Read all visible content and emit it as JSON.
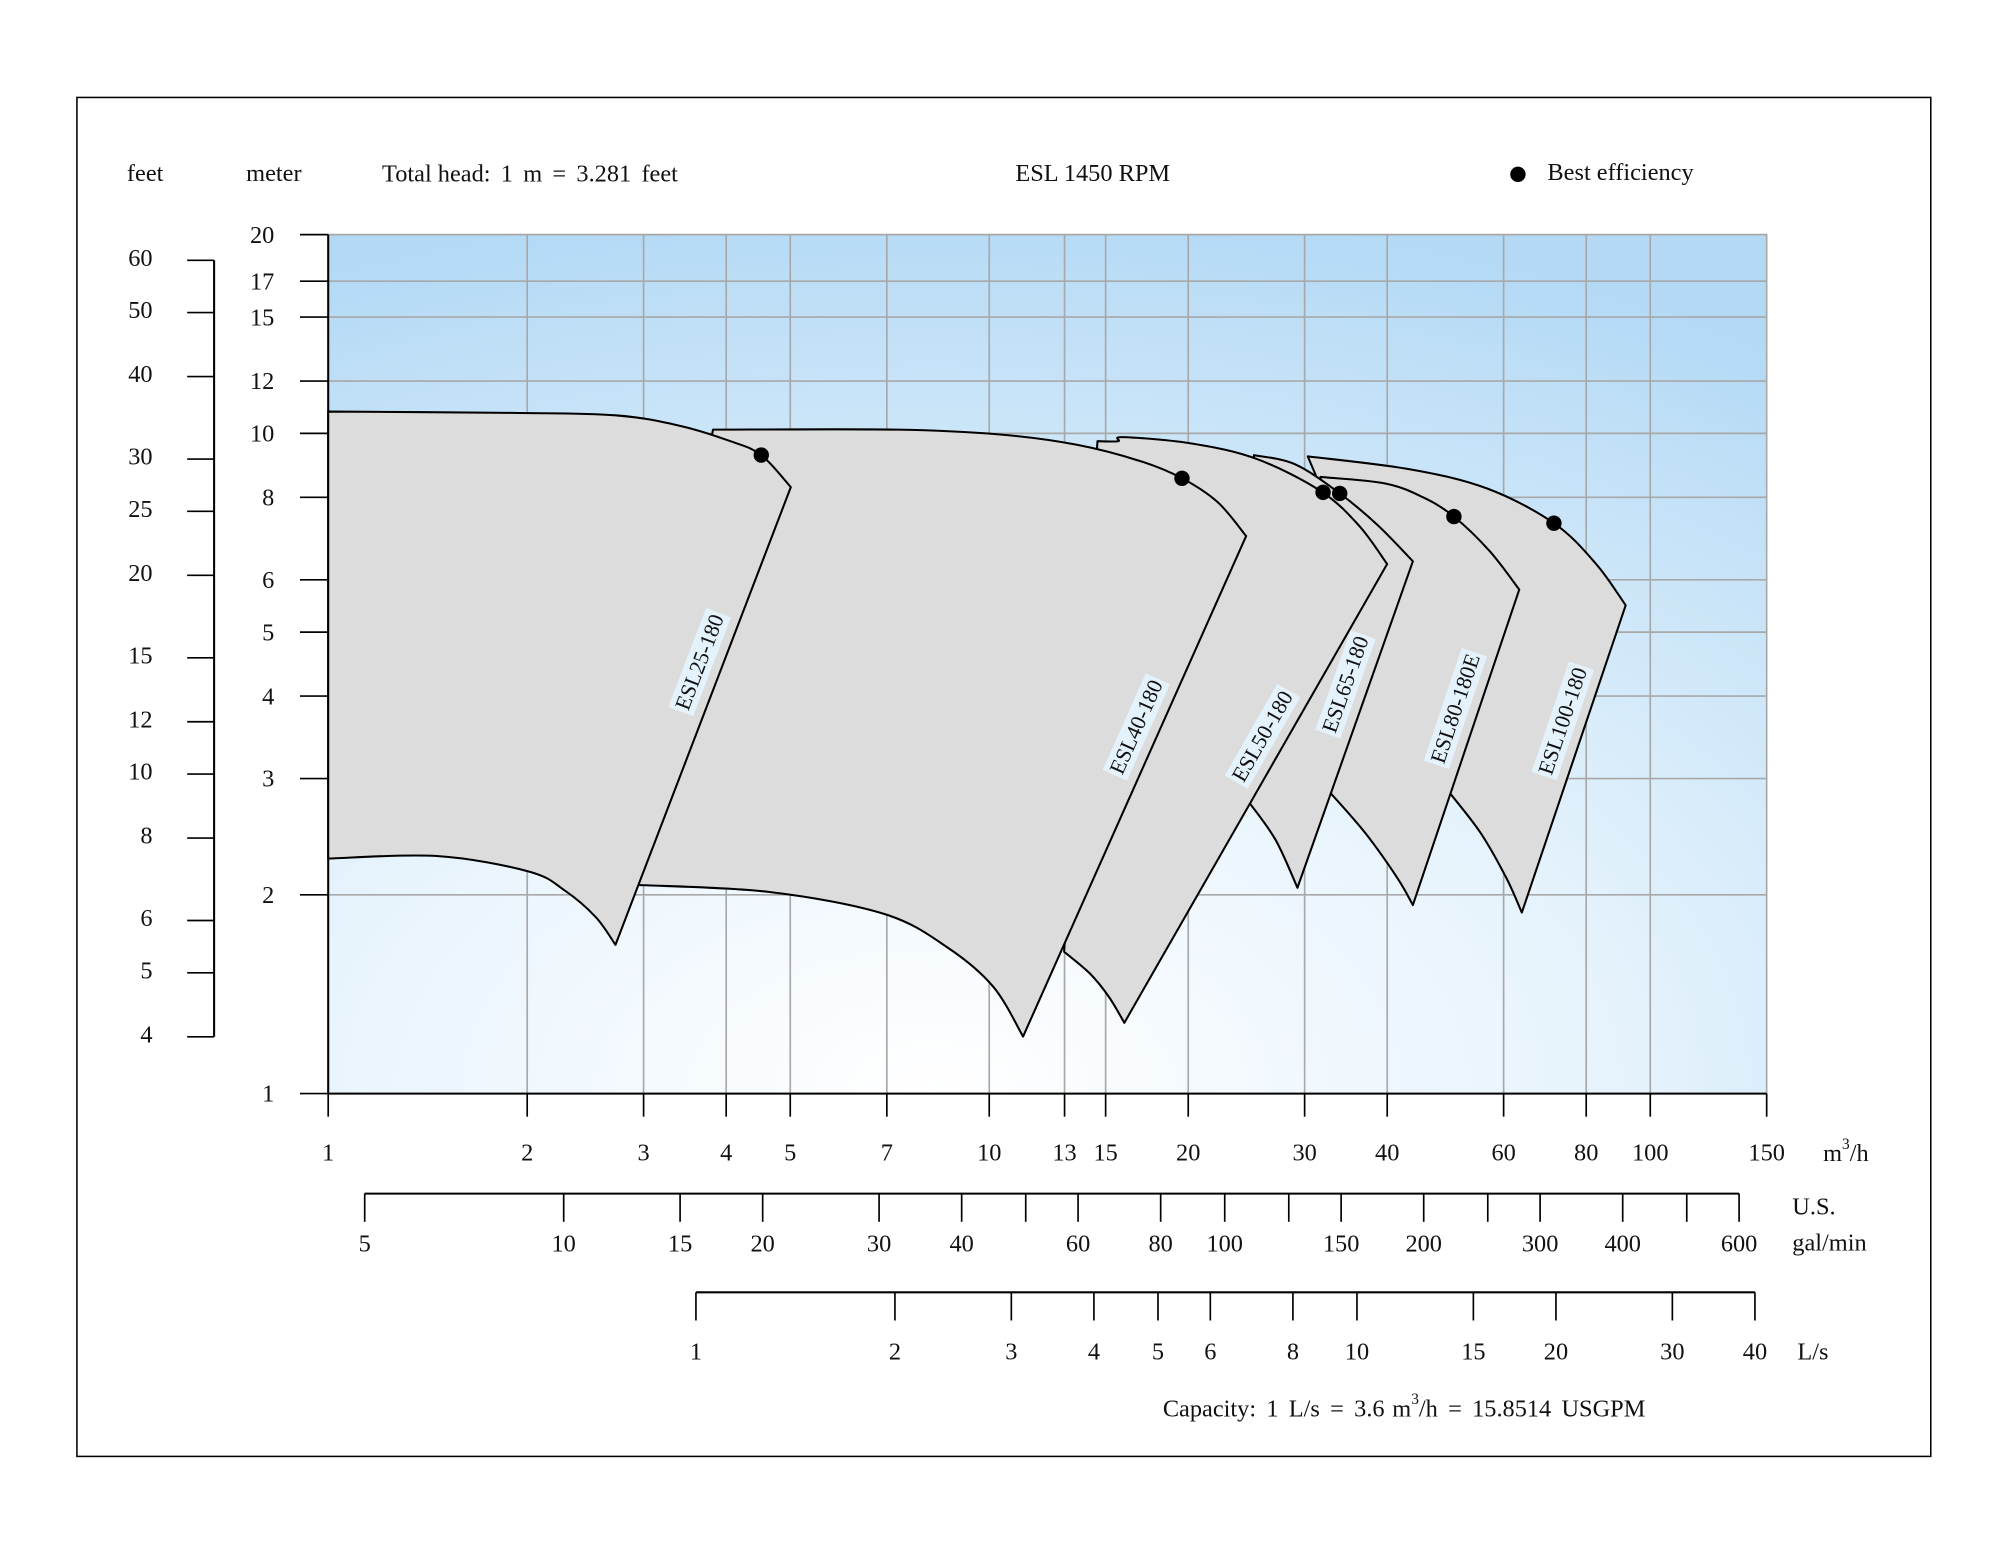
{
  "chart_data": {
    "type": "pump-curve",
    "title": "ESL 1450 RPM",
    "feet_label": "feet",
    "y_label": "meter",
    "total_head": {
      "prefix": "Total head:",
      "m": 1,
      "m_unit": "m",
      "eq": "=",
      "feet": 3.281,
      "feet_unit": "feet"
    },
    "legend_label": "Best efficiency",
    "legend_color": "#000000",
    "xscale": "log",
    "yscale": "log",
    "grid": true,
    "xlim": [
      1,
      150
    ],
    "xticks": [
      1,
      2,
      3,
      4,
      5,
      7,
      10,
      13,
      15,
      20,
      30,
      40,
      60,
      80,
      100,
      150
    ],
    "x_unit": {
      "base": "m",
      "sup": "3",
      "tail": "/h"
    },
    "ylim": [
      1,
      20
    ],
    "yticks": [
      1,
      2,
      3,
      4,
      5,
      6,
      8,
      10,
      12,
      15,
      17,
      20
    ],
    "feet_ticks": [
      4,
      5,
      6,
      8,
      10,
      12,
      15,
      20,
      25,
      30,
      40,
      50,
      60
    ],
    "gpm_ticks": [
      5,
      10,
      15,
      20,
      30,
      40,
      60,
      80,
      100,
      150,
      200,
      300,
      400,
      600
    ],
    "gpm_minor_ticks": [
      50,
      125,
      250,
      500
    ],
    "gpm_unit": [
      "U.S.",
      "gal/min"
    ],
    "ls_ticks": [
      1,
      2,
      3,
      4,
      5,
      6,
      8,
      10,
      15,
      20,
      30,
      40
    ],
    "ls_unit": "L/s",
    "capacity": {
      "prefix": "Capacity:",
      "ls": 1,
      "ls_unit": "L/s",
      "eq": "=",
      "m3h": 3.6,
      "m3h_unit": {
        "base": "m",
        "sup": "3",
        "tail": "/h"
      },
      "usgpm": 15.8514,
      "usgpm_unit": "USGPM"
    },
    "series": [
      {
        "name": "ESL25-180",
        "fill": "#dcdcdc",
        "top": {
          "q": [
            1,
            1.9,
            2.72,
            3.4,
            4.06,
            4.52,
            5.01
          ],
          "h": [
            10.79,
            10.74,
            10.65,
            10.27,
            9.73,
            9.27,
            8.29
          ]
        },
        "bottom": {
          "q": [
            1,
            1.46,
            2.01,
            2.28,
            2.54,
            2.72
          ],
          "h": [
            2.27,
            2.29,
            2.17,
            2.03,
            1.85,
            1.68
          ]
        },
        "best": {
          "q": 4.52,
          "h": 9.27
        }
      },
      {
        "name": "ESL40-180",
        "fill": "#dcdcdc",
        "top": {
          "q": [
            3.82,
            7.26,
            10.38,
            13.57,
            16.97,
            19.57,
            22.18,
            24.47
          ],
          "h": [
            10.13,
            10.13,
            9.96,
            9.61,
            9.07,
            8.55,
            7.86,
            6.99
          ]
        },
        "bottom": {
          "q": [
            2.95,
            4.65,
            6.95,
            8.68,
            10.15,
            11.25
          ],
          "h": [
            2.07,
            2.02,
            1.87,
            1.66,
            1.45,
            1.22
          ]
        },
        "best": {
          "q": 19.57,
          "h": 8.55
        }
      },
      {
        "name": "ESL50-180",
        "fill": "#dcdcdc",
        "top": {
          "q": [
            14.58,
            15.66,
            15.94,
            20.29,
            25.36,
            31.71,
            36.25,
            39.99
          ],
          "h": [
            9.73,
            9.73,
            9.87,
            9.65,
            9.15,
            8.18,
            7.25,
            6.34
          ]
        },
        "bottom": {
          "q": [
            12.98,
            14.2,
            15.18,
            16.01
          ],
          "h": [
            1.64,
            1.52,
            1.4,
            1.28
          ]
        },
        "best": {
          "q": 31.99,
          "h": 8.14
        }
      },
      {
        "name": "ESL65-180",
        "fill": "#dcdcdc",
        "top": {
          "q": [
            25.14,
            29.0,
            33.9,
            38.76,
            43.74
          ],
          "h": [
            9.27,
            8.98,
            8.11,
            7.25,
            6.4
          ]
        },
        "bottom": {
          "q": [
            24.8,
            27.13,
            29.26
          ],
          "h": [
            2.75,
            2.42,
            2.05
          ]
        },
        "best": {
          "q": 33.9,
          "h": 8.11
        }
      },
      {
        "name": "ESL80-180E",
        "fill": "#dcdcdc",
        "top": {
          "q": [
            31.71,
            39.64,
            45.33,
            50.46,
            57.17,
            63.36
          ],
          "h": [
            8.59,
            8.4,
            8.0,
            7.48,
            6.63,
            5.8
          ]
        },
        "bottom": {
          "q": [
            32.86,
            37.07,
            41.45,
            43.74
          ],
          "h": [
            2.85,
            2.48,
            2.12,
            1.93
          ]
        },
        "best": {
          "q": 50.46,
          "h": 7.48
        }
      },
      {
        "name": "ESL100-180",
        "fill": "#dcdcdc",
        "top": {
          "q": [
            30.33,
            43.35,
            56.66,
            71.49,
            82.82,
            91.79
          ],
          "h": [
            9.23,
            8.82,
            8.25,
            7.31,
            6.34,
            5.49
          ]
        },
        "bottom": {
          "q": [
            49.78,
            55.41,
            60.59,
            63.93
          ],
          "h": [
            2.85,
            2.48,
            2.12,
            1.88
          ]
        },
        "best": {
          "q": 71.49,
          "h": 7.31
        }
      }
    ]
  }
}
